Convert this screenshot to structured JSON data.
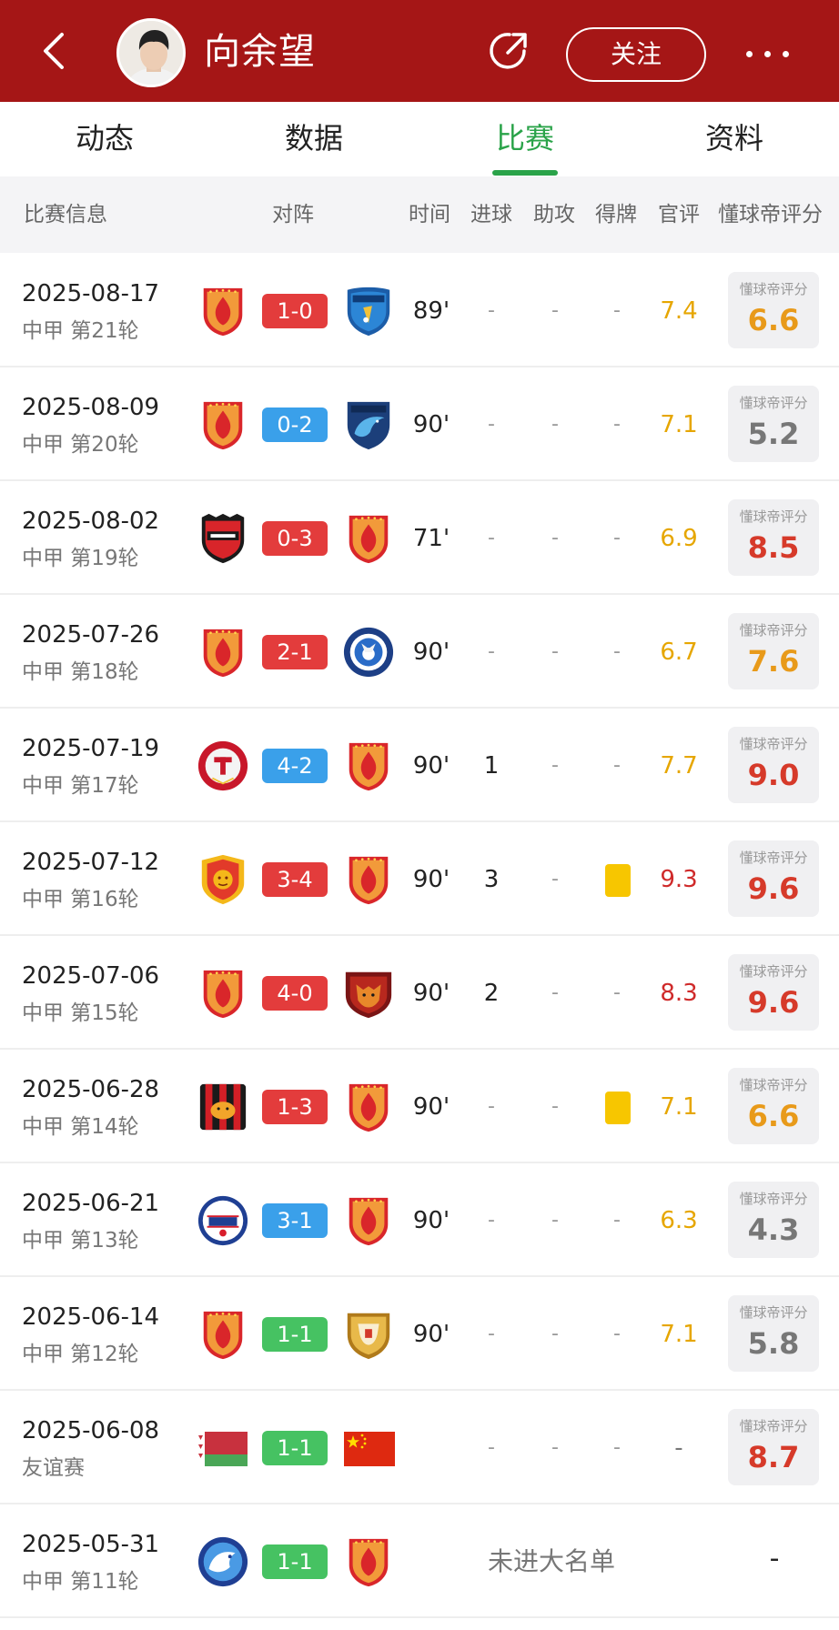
{
  "header": {
    "player_name": "向余望",
    "follow_label": "关注",
    "icons": [
      "back-arrow-icon",
      "avatar",
      "share-icon",
      "more-icon"
    ]
  },
  "tabs": [
    {
      "label": "动态",
      "active": false
    },
    {
      "label": "数据",
      "active": false
    },
    {
      "label": "比赛",
      "active": true
    },
    {
      "label": "资料",
      "active": false
    }
  ],
  "columns": {
    "match_info": "比赛信息",
    "matchup": "对阵",
    "time": "时间",
    "goals": "进球",
    "assists": "助攻",
    "cards": "得牌",
    "official": "官评",
    "dqd_rating": "懂球帝评分"
  },
  "colors": {
    "header_red": "#a51616",
    "tab_green": "#2aa349",
    "score_win": "#e33c3c",
    "score_loss": "#3aa0ea",
    "score_draw": "#46c262",
    "card_yellow": "#f7c600"
  },
  "matches": [
    {
      "date": "2025-08-17",
      "round": "中甲 第21轮",
      "home": "club-red-crest",
      "away": "club-blue-shield-crest",
      "score": "1-0",
      "result": "win",
      "time": "89'",
      "goals": "-",
      "assists": "-",
      "cards": "-",
      "official": "7.4",
      "official_color": "yellow",
      "rating_label": "懂球帝评分",
      "rating": "6.6",
      "rating_color": "orange"
    },
    {
      "date": "2025-08-09",
      "round": "中甲 第20轮",
      "home": "club-red-crest",
      "away": "club-dolphin-crest",
      "score": "0-2",
      "result": "loss",
      "time": "90'",
      "goals": "-",
      "assists": "-",
      "cards": "-",
      "official": "7.1",
      "official_color": "yellow",
      "rating_label": "懂球帝评分",
      "rating": "5.2",
      "rating_color": "gray"
    },
    {
      "date": "2025-08-02",
      "round": "中甲 第19轮",
      "home": "club-union-crest",
      "away": "club-red-crest",
      "score": "0-3",
      "result": "win",
      "time": "71'",
      "goals": "-",
      "assists": "-",
      "cards": "-",
      "official": "6.9",
      "official_color": "yellow",
      "rating_label": "懂球帝评分",
      "rating": "8.5",
      "rating_color": "red"
    },
    {
      "date": "2025-07-26",
      "round": "中甲 第18轮",
      "home": "club-red-crest",
      "away": "club-blue-circle-crest",
      "score": "2-1",
      "result": "win",
      "time": "90'",
      "goals": "-",
      "assists": "-",
      "cards": "-",
      "official": "6.7",
      "official_color": "yellow",
      "rating_label": "懂球帝评分",
      "rating": "7.6",
      "rating_color": "orange"
    },
    {
      "date": "2025-07-19",
      "round": "中甲 第17轮",
      "home": "club-tieren-crest",
      "away": "club-red-crest",
      "score": "4-2",
      "result": "loss",
      "time": "90'",
      "goals": "1",
      "assists": "-",
      "cards": "-",
      "official": "7.7",
      "official_color": "yellow",
      "rating_label": "懂球帝评分",
      "rating": "9.0",
      "rating_color": "red"
    },
    {
      "date": "2025-07-12",
      "round": "中甲 第16轮",
      "home": "club-lion-crest",
      "away": "club-red-crest",
      "score": "3-4",
      "result": "win",
      "time": "90'",
      "goals": "3",
      "assists": "-",
      "cards": "yellow",
      "official": "9.3",
      "official_color": "red",
      "rating_label": "懂球帝评分",
      "rating": "9.6",
      "rating_color": "red"
    },
    {
      "date": "2025-07-06",
      "round": "中甲 第15轮",
      "home": "club-red-crest",
      "away": "club-tiger-crest",
      "score": "4-0",
      "result": "win",
      "time": "90'",
      "goals": "2",
      "assists": "-",
      "cards": "-",
      "official": "8.3",
      "official_color": "red",
      "rating_label": "懂球帝评分",
      "rating": "9.6",
      "rating_color": "red"
    },
    {
      "date": "2025-06-28",
      "round": "中甲 第14轮",
      "home": "club-striped-tiger-crest",
      "away": "club-red-crest",
      "score": "1-3",
      "result": "win",
      "time": "90'",
      "goals": "-",
      "assists": "-",
      "cards": "yellow",
      "official": "7.1",
      "official_color": "yellow",
      "rating_label": "懂球帝评分",
      "rating": "6.6",
      "rating_color": "orange"
    },
    {
      "date": "2025-06-21",
      "round": "中甲 第13轮",
      "home": "club-sjgff-crest",
      "away": "club-red-crest",
      "score": "3-1",
      "result": "loss",
      "time": "90'",
      "goals": "-",
      "assists": "-",
      "cards": "-",
      "official": "6.3",
      "official_color": "yellow",
      "rating_label": "懂球帝评分",
      "rating": "4.3",
      "rating_color": "gray"
    },
    {
      "date": "2025-06-14",
      "round": "中甲 第12轮",
      "home": "club-red-crest",
      "away": "club-gold-crest",
      "score": "1-1",
      "result": "draw",
      "time": "90'",
      "goals": "-",
      "assists": "-",
      "cards": "-",
      "official": "7.1",
      "official_color": "yellow",
      "rating_label": "懂球帝评分",
      "rating": "5.8",
      "rating_color": "gray"
    },
    {
      "date": "2025-06-08",
      "round": "友谊赛",
      "home": "belarus-flag",
      "away": "china-flag",
      "score": "1-1",
      "result": "draw",
      "time": "",
      "goals": "-",
      "assists": "-",
      "cards": "-",
      "official": "-",
      "official_color": "dash",
      "rating_label": "懂球帝评分",
      "rating": "8.7",
      "rating_color": "red"
    },
    {
      "date": "2025-05-31",
      "round": "中甲 第11轮",
      "home": "club-blue-dragon-crest",
      "away": "club-red-crest",
      "score": "1-1",
      "result": "draw",
      "not_in_squad": "未进大名单",
      "rating_none": "-"
    }
  ]
}
